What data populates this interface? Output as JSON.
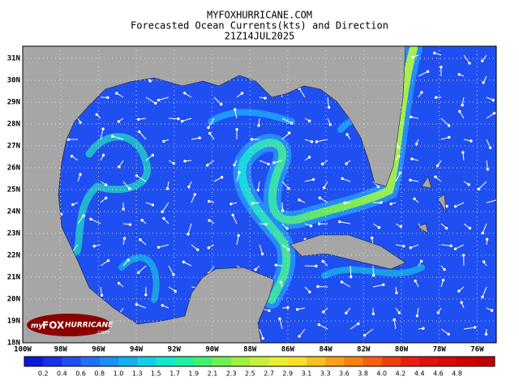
{
  "header": {
    "site": "MYFOXHURRICANE.COM",
    "title": "Forecasted Ocean Currents(kts) and Direction",
    "time": "21Z14JUL2025"
  },
  "map": {
    "lat_labels": [
      "31N",
      "30N",
      "29N",
      "28N",
      "27N",
      "26N",
      "25N",
      "24N",
      "23N",
      "22N",
      "21N",
      "20N",
      "19N",
      "18N"
    ],
    "lon_labels": [
      "100W",
      "98W",
      "96W",
      "94W",
      "92W",
      "90W",
      "88W",
      "86W",
      "84W",
      "82W",
      "80W",
      "78W",
      "76W"
    ]
  },
  "logo": {
    "my": "my",
    "brand": "FOX",
    "name": "HURRICANE",
    "suffix": ".com"
  },
  "colorbar": {
    "labels": [
      "0.2",
      "0.4",
      "0.6",
      "0.8",
      "1.0",
      "1.3",
      "1.5",
      "1.7",
      "1.9",
      "2.1",
      "2.3",
      "2.5",
      "2.7",
      "2.9",
      "3.1",
      "3.3",
      "3.6",
      "3.8",
      "4.0",
      "4.2",
      "4.4",
      "4.6",
      "4.8"
    ]
  }
}
